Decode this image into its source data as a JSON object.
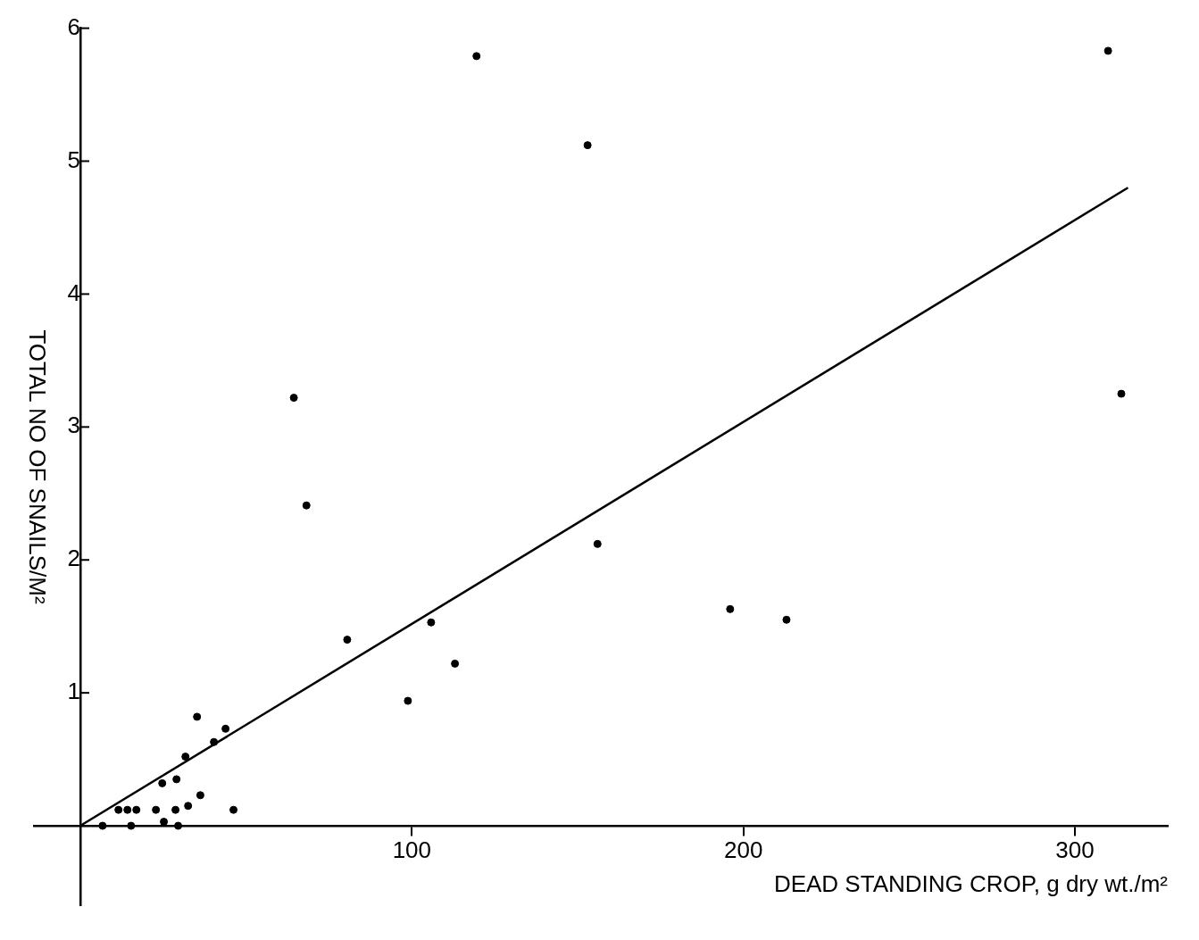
{
  "chart_data": {
    "type": "scatter",
    "xlabel": "DEAD STANDING CROP, g dry wt./m²",
    "ylabel": "TOTAL NO OF SNAILS/M²",
    "xlim": [
      -14,
      328
    ],
    "ylim": [
      -0.6,
      6
    ],
    "xticks": [
      {
        "value": 0,
        "label": null
      },
      100,
      200,
      300
    ],
    "yticks": [
      {
        "value": 0,
        "label": null
      },
      1,
      2,
      3,
      4,
      5,
      6
    ],
    "grid": false,
    "legend": false,
    "marker": "circle",
    "series": [
      {
        "type": "scatter",
        "color": "#000000",
        "x": [
          35.2,
          43.8,
          40.3,
          31.7,
          24.7,
          29.0,
          36.2,
          11.5,
          14.2,
          16.9,
          22.8,
          28.7,
          32.5,
          46.2,
          6.7,
          15.3,
          25.2,
          29.5,
          119.5,
          153,
          310,
          314,
          64.4,
          68.2,
          156,
          196,
          213,
          80.5,
          105.8,
          113,
          98.8
        ],
        "values": [
          0.82,
          0.73,
          0.63,
          0.52,
          0.32,
          0.35,
          0.23,
          0.12,
          0.12,
          0.12,
          0.12,
          0.12,
          0.15,
          0.12,
          0,
          0,
          0.03,
          0,
          5.79,
          5.12,
          5.83,
          3.25,
          3.22,
          2.41,
          2.12,
          1.63,
          1.55,
          1.4,
          1.53,
          1.22,
          0.94
        ]
      },
      {
        "type": "line",
        "color": "#000000",
        "line_style": "solid",
        "marker": "none",
        "x": [
          0,
          316
        ],
        "values": [
          0,
          4.8
        ]
      }
    ]
  }
}
